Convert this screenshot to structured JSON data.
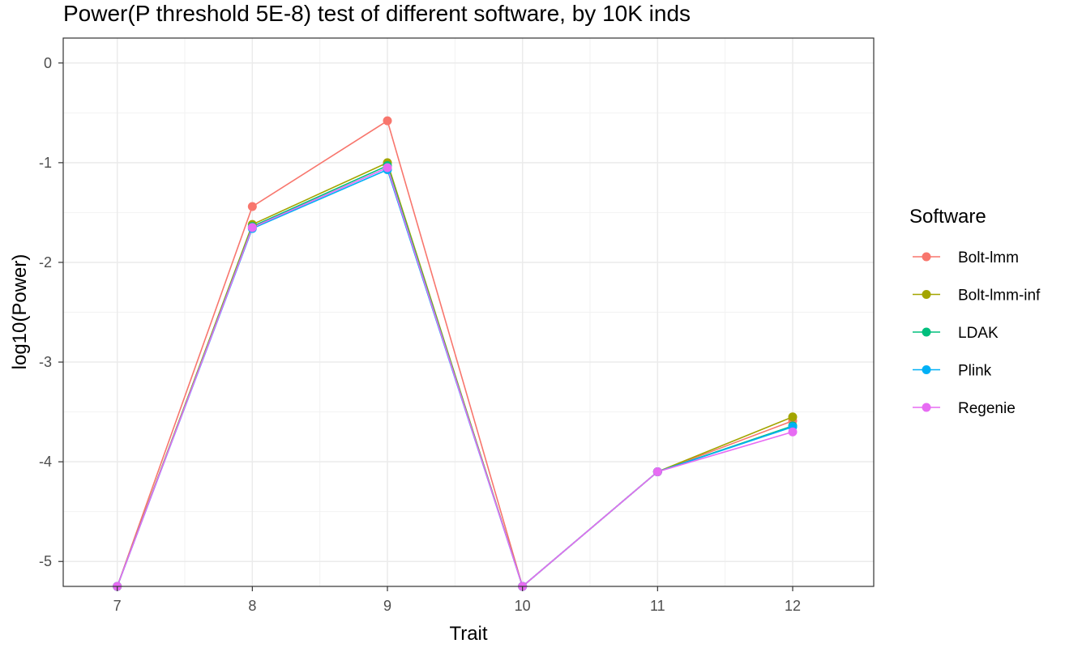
{
  "chart_data": {
    "type": "line",
    "title": "Power(P threshold 5E-8) test of different software, by 10K inds",
    "xlabel": "Trait",
    "ylabel": "log10(Power)",
    "x": [
      7,
      8,
      9,
      10,
      11,
      12
    ],
    "xticks": [
      "7",
      "8",
      "9",
      "10",
      "11",
      "12"
    ],
    "xlim": [
      6.6,
      12.6
    ],
    "yticks": [
      0,
      -1,
      -2,
      -3,
      -4,
      -5
    ],
    "ytick_labels": [
      "0",
      "-1",
      "-2",
      "-3",
      "-4",
      "-5"
    ],
    "ylim": [
      -5.25,
      0.25
    ],
    "grid": true,
    "legend": {
      "title": "Software",
      "placement": "right"
    },
    "series": [
      {
        "name": "Bolt-lmm",
        "color": "#F8766D",
        "values": [
          -5.25,
          -1.44,
          -0.58,
          -5.25,
          -4.1,
          -3.59
        ]
      },
      {
        "name": "Bolt-lmm-inf",
        "color": "#A3A500",
        "values": [
          -5.25,
          -1.62,
          -1.0,
          -5.25,
          -4.1,
          -3.55
        ]
      },
      {
        "name": "LDAK",
        "color": "#00BF7D",
        "values": [
          -5.25,
          -1.64,
          -1.03,
          -5.25,
          -4.1,
          -3.64
        ]
      },
      {
        "name": "Plink",
        "color": "#00B0F6",
        "values": [
          -5.25,
          -1.66,
          -1.07,
          -5.25,
          -4.1,
          -3.65
        ]
      },
      {
        "name": "Regenie",
        "color": "#E76BF3",
        "values": [
          -5.25,
          -1.65,
          -1.05,
          -5.25,
          -4.1,
          -3.7
        ]
      }
    ]
  }
}
